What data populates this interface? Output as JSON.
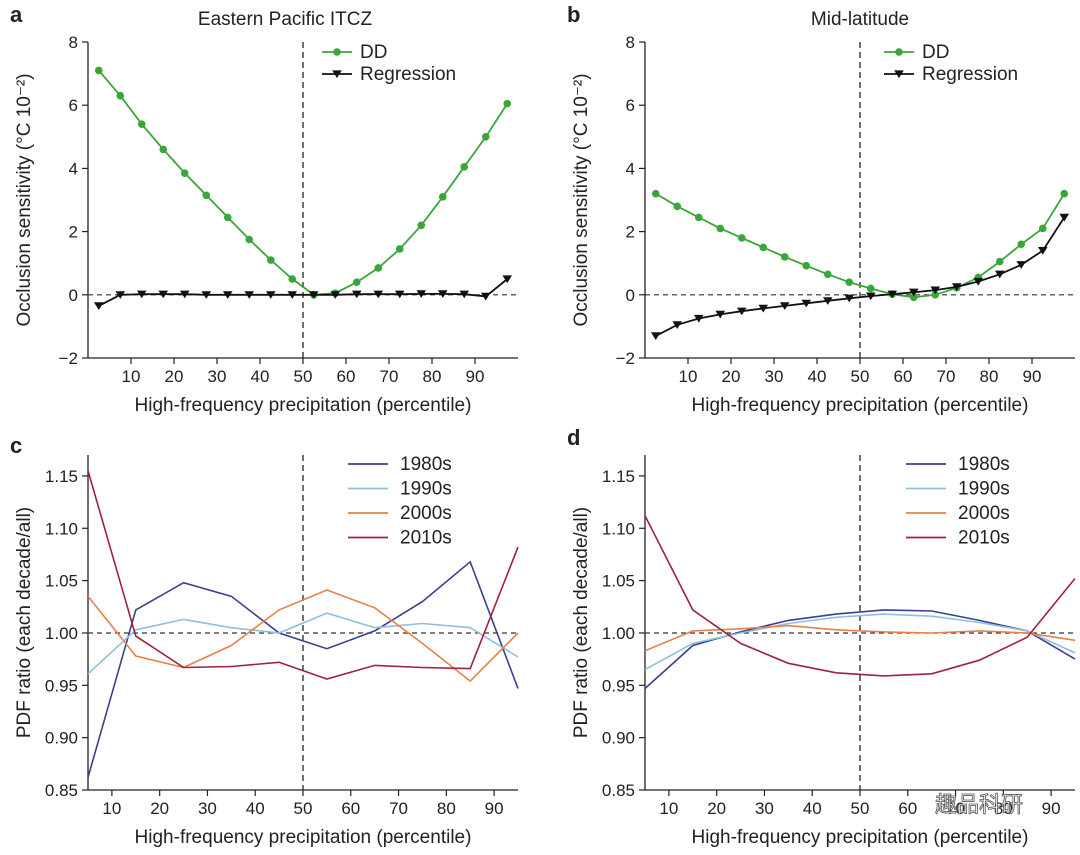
{
  "figure": {
    "watermark": "趣品科研"
  },
  "chart_data": [
    {
      "id": "a",
      "letter": "a",
      "type": "line",
      "title": "Eastern Pacific ITCZ",
      "xlabel": "High-frequency precipitation  (percentile)",
      "ylabel": "Occlusion sensitivity (°C 10⁻²)",
      "xlim": [
        0,
        100
      ],
      "ylim": [
        -2,
        8
      ],
      "xticks": [
        10,
        20,
        30,
        40,
        50,
        60,
        70,
        80,
        90
      ],
      "yticks": [
        -2,
        0,
        2,
        4,
        6,
        8
      ],
      "zero_line": 0,
      "vline": 50,
      "legend_position": "top-right",
      "series": [
        {
          "name": "DD",
          "color": "#3aa63a",
          "marker": "circle",
          "x": [
            2.5,
            7.5,
            12.5,
            17.5,
            22.5,
            27.5,
            32.5,
            37.5,
            42.5,
            47.5,
            52.5,
            57.5,
            62.5,
            67.5,
            72.5,
            77.5,
            82.5,
            87.5,
            92.5,
            97.5
          ],
          "y": [
            7.1,
            6.3,
            5.4,
            4.6,
            3.85,
            3.15,
            2.45,
            1.75,
            1.1,
            0.5,
            0.0,
            0.05,
            0.4,
            0.85,
            1.45,
            2.2,
            3.1,
            4.05,
            5.0,
            6.05
          ]
        },
        {
          "name": "Regression",
          "color": "#111111",
          "marker": "triangle-down",
          "x": [
            2.5,
            7.5,
            12.5,
            17.5,
            22.5,
            27.5,
            32.5,
            37.5,
            42.5,
            47.5,
            52.5,
            57.5,
            62.5,
            67.5,
            72.5,
            77.5,
            82.5,
            87.5,
            92.5,
            97.5
          ],
          "y": [
            -0.35,
            0.0,
            0.02,
            0.02,
            0.02,
            0.0,
            0.0,
            0.0,
            0.0,
            0.0,
            0.0,
            0.0,
            0.02,
            0.02,
            0.02,
            0.03,
            0.03,
            0.02,
            -0.05,
            0.5
          ]
        }
      ]
    },
    {
      "id": "b",
      "letter": "b",
      "type": "line",
      "title": "Mid-latitude",
      "xlabel": "High-frequency precipitation  (percentile)",
      "ylabel": "Occlusion sensitivity (°C 10⁻²)",
      "xlim": [
        0,
        100
      ],
      "ylim": [
        -2,
        8
      ],
      "xticks": [
        10,
        20,
        30,
        40,
        50,
        60,
        70,
        80,
        90
      ],
      "yticks": [
        -2,
        0,
        2,
        4,
        6,
        8
      ],
      "zero_line": 0,
      "vline": 50,
      "legend_position": "top-right",
      "series": [
        {
          "name": "DD",
          "color": "#3aa63a",
          "marker": "circle",
          "x": [
            2.5,
            7.5,
            12.5,
            17.5,
            22.5,
            27.5,
            32.5,
            37.5,
            42.5,
            47.5,
            52.5,
            57.5,
            62.5,
            67.5,
            72.5,
            77.5,
            82.5,
            87.5,
            92.5,
            97.5
          ],
          "y": [
            3.2,
            2.8,
            2.45,
            2.1,
            1.8,
            1.5,
            1.2,
            0.92,
            0.65,
            0.4,
            0.2,
            0.02,
            -0.08,
            0.0,
            0.22,
            0.55,
            1.05,
            1.6,
            2.1,
            3.2
          ]
        },
        {
          "name": "Regression",
          "color": "#111111",
          "marker": "triangle-down",
          "x": [
            2.5,
            7.5,
            12.5,
            17.5,
            22.5,
            27.5,
            32.5,
            37.5,
            42.5,
            47.5,
            52.5,
            57.5,
            62.5,
            67.5,
            72.5,
            77.5,
            82.5,
            87.5,
            92.5,
            97.5
          ],
          "y": [
            -1.3,
            -0.95,
            -0.75,
            -0.62,
            -0.52,
            -0.43,
            -0.35,
            -0.27,
            -0.19,
            -0.11,
            -0.04,
            0.02,
            0.08,
            0.15,
            0.25,
            0.42,
            0.65,
            0.95,
            1.4,
            2.45
          ]
        }
      ]
    },
    {
      "id": "c",
      "letter": "c",
      "type": "line",
      "title": "",
      "xlabel": "High-frequency precipitation (percentile)",
      "ylabel": "PDF ratio (each decade/all)",
      "xlim": [
        5,
        95
      ],
      "ylim": [
        0.85,
        1.17
      ],
      "xticks": [
        10,
        20,
        30,
        40,
        50,
        60,
        70,
        80,
        90
      ],
      "yticks": [
        0.85,
        0.9,
        0.95,
        1.0,
        1.05,
        1.1,
        1.15
      ],
      "ytick_labels": [
        "0.85",
        "0.90",
        "0.95",
        "1.00",
        "1.05",
        "1.10",
        "1.15"
      ],
      "zero_line": 1.0,
      "vline": 50,
      "legend_position": "top-right",
      "series": [
        {
          "name": "1980s",
          "color": "#3b3f8f",
          "x": [
            5,
            15,
            25,
            35,
            45,
            55,
            65,
            75,
            85,
            95
          ],
          "y": [
            0.862,
            1.022,
            1.048,
            1.035,
            1.0,
            0.985,
            1.002,
            1.03,
            1.068,
            0.947
          ]
        },
        {
          "name": "1990s",
          "color": "#8fbfdf",
          "x": [
            5,
            15,
            25,
            35,
            45,
            55,
            65,
            75,
            85,
            95
          ],
          "y": [
            0.961,
            1.003,
            1.013,
            1.005,
            1.0,
            1.019,
            1.005,
            1.009,
            1.005,
            0.977
          ]
        },
        {
          "name": "2000s",
          "color": "#e8804a",
          "x": [
            5,
            15,
            25,
            35,
            45,
            55,
            65,
            75,
            85,
            95
          ],
          "y": [
            1.035,
            0.978,
            0.967,
            0.988,
            1.022,
            1.041,
            1.024,
            0.99,
            0.954,
            1.0
          ]
        },
        {
          "name": "2010s",
          "color": "#a0213f",
          "x": [
            5,
            15,
            25,
            35,
            45,
            55,
            65,
            75,
            85,
            95
          ],
          "y": [
            1.155,
            0.997,
            0.967,
            0.968,
            0.972,
            0.956,
            0.969,
            0.967,
            0.966,
            1.082
          ]
        }
      ]
    },
    {
      "id": "d",
      "letter": "d",
      "type": "line",
      "title": "",
      "xlabel": "High-frequency precipitation (percentile)",
      "ylabel": "PDF ratio (each decade/all)",
      "xlim": [
        5,
        95
      ],
      "ylim": [
        0.85,
        1.17
      ],
      "xticks": [
        10,
        20,
        30,
        40,
        50,
        60,
        70,
        80,
        90
      ],
      "yticks": [
        0.85,
        0.9,
        0.95,
        1.0,
        1.05,
        1.1,
        1.15
      ],
      "ytick_labels": [
        "0.85",
        "0.90",
        "0.95",
        "1.00",
        "1.05",
        "1.10",
        "1.15"
      ],
      "zero_line": 1.0,
      "vline": 50,
      "legend_position": "top-right",
      "series": [
        {
          "name": "1980s",
          "color": "#3b3f8f",
          "x": [
            5,
            15,
            25,
            35,
            45,
            55,
            65,
            75,
            85,
            95
          ],
          "y": [
            0.947,
            0.988,
            1.001,
            1.012,
            1.018,
            1.022,
            1.021,
            1.012,
            1.002,
            0.975
          ]
        },
        {
          "name": "1990s",
          "color": "#8fbfdf",
          "x": [
            5,
            15,
            25,
            35,
            45,
            55,
            65,
            75,
            85,
            95
          ],
          "y": [
            0.965,
            0.99,
            1.0,
            1.009,
            1.015,
            1.018,
            1.016,
            1.01,
            1.002,
            0.981
          ]
        },
        {
          "name": "2000s",
          "color": "#e8804a",
          "x": [
            5,
            15,
            25,
            35,
            45,
            55,
            65,
            75,
            85,
            95
          ],
          "y": [
            0.983,
            1.002,
            1.004,
            1.007,
            1.003,
            1.001,
            1.0,
            1.002,
            1.0,
            0.993
          ]
        },
        {
          "name": "2010s",
          "color": "#a0213f",
          "x": [
            5,
            15,
            25,
            35,
            45,
            55,
            65,
            75,
            85,
            95
          ],
          "y": [
            1.112,
            1.022,
            0.99,
            0.971,
            0.962,
            0.959,
            0.961,
            0.974,
            0.996,
            1.052
          ]
        }
      ]
    }
  ]
}
